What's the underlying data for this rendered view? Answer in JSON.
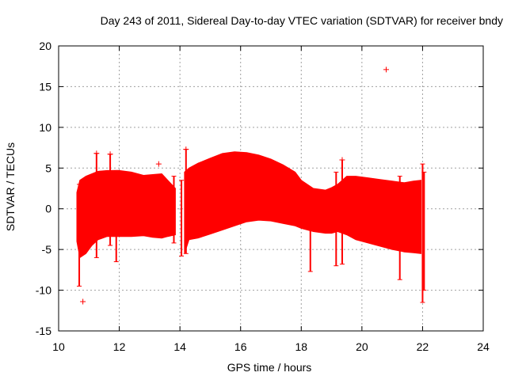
{
  "chart_data": {
    "type": "scatter",
    "title": "Day 243 of 2011, Sidereal Day-to-day VTEC variation (SDTVAR) for receiver bndy",
    "xlabel": "GPS time / hours",
    "ylabel": "SDTVAR / TECUs",
    "xlim": [
      10,
      24
    ],
    "ylim": [
      -15,
      20
    ],
    "xticks": [
      "10",
      "12",
      "14",
      "16",
      "18",
      "20",
      "22",
      "24"
    ],
    "yticks": [
      "20",
      "15",
      "10",
      "5",
      "0",
      "-5",
      "-10",
      "-15"
    ],
    "grid": true,
    "marker": "+",
    "color": "#ff0000",
    "series": [
      {
        "name": "SDTVAR",
        "bands": [
          {
            "x": [
              10.6,
              10.7,
              10.9,
              11.1,
              11.3,
              11.6,
              12.0,
              12.4,
              12.8,
              13.1,
              13.4,
              13.6,
              13.85
            ],
            "upper": [
              2.0,
              3.5,
              4.0,
              4.3,
              4.6,
              4.7,
              4.7,
              4.5,
              4.1,
              4.2,
              4.3,
              3.5,
              2.5
            ],
            "lower": [
              -4.0,
              -6.0,
              -5.5,
              -4.5,
              -3.8,
              -3.4,
              -3.4,
              -3.4,
              -3.3,
              -3.5,
              -3.6,
              -3.4,
              -3.2
            ]
          },
          {
            "x": [
              14.15,
              14.3,
              14.6,
              15.0,
              15.4,
              15.8,
              16.2,
              16.6,
              17.0,
              17.4,
              17.8,
              18.0,
              18.4,
              18.8,
              19.0,
              19.2
            ],
            "upper": [
              4.5,
              5.0,
              5.6,
              6.2,
              6.8,
              7.0,
              6.9,
              6.6,
              6.1,
              5.4,
              4.5,
              3.5,
              2.5,
              2.3,
              2.6,
              3.0
            ],
            "lower": [
              -5.5,
              -3.8,
              -3.6,
              -3.1,
              -2.6,
              -2.1,
              -1.6,
              -1.4,
              -1.5,
              -1.8,
              -2.1,
              -2.4,
              -2.8,
              -3.0,
              -3.0,
              -2.8
            ]
          },
          {
            "x": [
              19.2,
              19.5,
              19.8,
              20.2,
              20.6,
              21.0,
              21.4,
              21.7,
              21.95
            ],
            "upper": [
              3.0,
              4.0,
              4.0,
              3.8,
              3.6,
              3.4,
              3.2,
              3.4,
              3.5
            ],
            "lower": [
              -2.8,
              -3.2,
              -3.8,
              -4.2,
              -4.6,
              -5.0,
              -5.3,
              -5.4,
              -5.5
            ]
          }
        ],
        "spikes": [
          {
            "x": 10.68,
            "top": 3.0,
            "bottom": -9.5
          },
          {
            "x": 11.25,
            "top": 6.8,
            "bottom": -6.0
          },
          {
            "x": 11.7,
            "top": 6.7,
            "bottom": -4.5
          },
          {
            "x": 11.9,
            "top": 4.7,
            "bottom": -6.5
          },
          {
            "x": 13.8,
            "top": 4.0,
            "bottom": -4.2
          },
          {
            "x": 14.05,
            "top": 3.5,
            "bottom": -5.8
          },
          {
            "x": 14.2,
            "top": 7.3,
            "bottom": -5.5
          },
          {
            "x": 18.3,
            "top": 2.3,
            "bottom": -7.7
          },
          {
            "x": 19.15,
            "top": 4.5,
            "bottom": -7.0
          },
          {
            "x": 19.35,
            "top": 6.0,
            "bottom": -6.8
          },
          {
            "x": 21.25,
            "top": 4.0,
            "bottom": -8.7
          },
          {
            "x": 22.0,
            "top": 5.5,
            "bottom": -11.5
          },
          {
            "x": 22.05,
            "top": 4.5,
            "bottom": -10.0
          }
        ],
        "outliers": [
          {
            "x": 10.8,
            "y": -11.4
          },
          {
            "x": 13.3,
            "y": 5.5
          },
          {
            "x": 20.8,
            "y": 17.1
          },
          {
            "x": 11.25,
            "y": 6.8
          },
          {
            "x": 11.7,
            "y": 6.7
          },
          {
            "x": 14.2,
            "y": 7.3
          },
          {
            "x": 19.35,
            "y": 6.0
          }
        ]
      }
    ]
  }
}
